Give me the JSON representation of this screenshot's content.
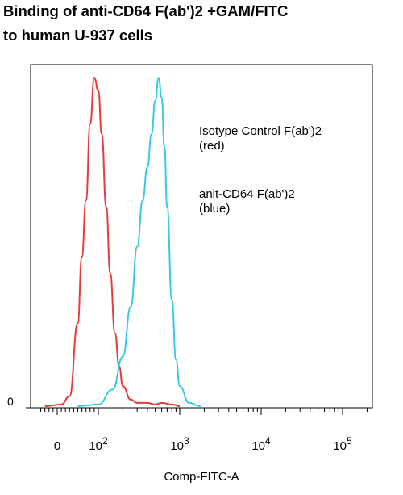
{
  "chart_data": {
    "type": "line",
    "title_lines": [
      "Binding of anti-CD64 F(ab')2 +GAM/FITC",
      "to human U-937 cells"
    ],
    "xlabel": "Comp-FITC-A",
    "ylabel": "",
    "x_scale": "biexponential",
    "x_ticks": [
      {
        "value": 0,
        "base": "0",
        "exp": ""
      },
      {
        "value": 100,
        "base": "10",
        "exp": "2"
      },
      {
        "value": 1000,
        "base": "10",
        "exp": "3"
      },
      {
        "value": 10000,
        "base": "10",
        "exp": "4"
      },
      {
        "value": 100000,
        "base": "10",
        "exp": "5"
      }
    ],
    "y_ticks": [
      "0"
    ],
    "ylim": [
      0,
      100
    ],
    "grid": false,
    "legend": [
      {
        "line1": "Isotype Control F(ab')2",
        "line2": "(red)"
      },
      {
        "line1": "anit-CD64 F(ab')2",
        "line2": "(blue)"
      }
    ],
    "series": [
      {
        "color": "#e83a3a",
        "x": [
          -30,
          10,
          30,
          50,
          60,
          70,
          80,
          90,
          100,
          110,
          125,
          140,
          160,
          180,
          200,
          250,
          300,
          400,
          500,
          600,
          800,
          1000
        ],
        "y": [
          0,
          0.5,
          3,
          25,
          45,
          62,
          85,
          99,
          95,
          82,
          60,
          40,
          22,
          12,
          6,
          2,
          1,
          1,
          0.5,
          1,
          0.5,
          0
        ]
      },
      {
        "color": "#38c8e8",
        "x": [
          50,
          100,
          150,
          200,
          250,
          300,
          350,
          400,
          450,
          500,
          550,
          600,
          650,
          700,
          800,
          900,
          1000,
          1300,
          1800
        ],
        "y": [
          0,
          0.5,
          5,
          15,
          30,
          48,
          62,
          72,
          82,
          92,
          99,
          93,
          78,
          60,
          32,
          14,
          6,
          1,
          0
        ]
      }
    ],
    "colors": {
      "red": "#e83a3a",
      "blue": "#38c8e8"
    }
  }
}
